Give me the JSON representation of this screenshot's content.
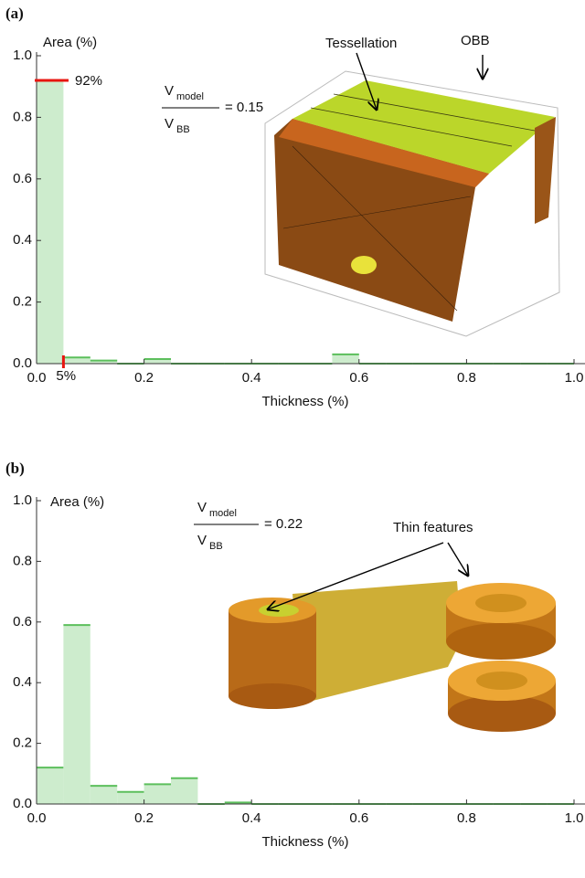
{
  "chart_data": [
    {
      "type": "histogram",
      "panel": "(a)",
      "y_label": "Area (%)",
      "x_label": "Thickness (%)",
      "bins": [
        0,
        0.05,
        0.1,
        0.15,
        0.2,
        0.25,
        0.3,
        0.35,
        0.4,
        0.45,
        0.5,
        0.55,
        0.6,
        0.65,
        0.7,
        0.75,
        0.8,
        0.85,
        0.9,
        0.95,
        1
      ],
      "counts": [
        0.92,
        0.02,
        0.01,
        0,
        0.015,
        0,
        0,
        0,
        0,
        0,
        0,
        0.03,
        0,
        0,
        0,
        0,
        0,
        0,
        0,
        0
      ],
      "color": "#cdeccd",
      "edge_color": "#5cbf5c",
      "xlim": [
        0,
        1
      ],
      "ylim": [
        0,
        1
      ],
      "xticks": [
        {
          "value": 0,
          "label": "0.0"
        },
        0.2,
        0.4,
        0.6,
        0.8,
        {
          "value": 1,
          "label": "1.0"
        }
      ],
      "yticks": [
        {
          "value": 0,
          "label": "0.0"
        },
        0.2,
        0.4,
        0.6,
        0.8,
        {
          "value": 1,
          "label": "1.0"
        }
      ],
      "annotations": [
        {
          "label": "92%",
          "y": 0.92,
          "color": "#e8150f"
        },
        {
          "label": "5%",
          "x": 0.05,
          "color": "#e8150f"
        }
      ],
      "formula": {
        "numerator": "V",
        "numerator_sub": "model",
        "denominator": "V",
        "denominator_sub": "BB",
        "result": "= 0.15"
      },
      "callouts": [
        "Tessellation",
        "OBB"
      ]
    },
    {
      "type": "histogram",
      "panel": "(b)",
      "y_label": "Area (%)",
      "x_label": "Thickness (%)",
      "bins": [
        0,
        0.05,
        0.1,
        0.15,
        0.2,
        0.25,
        0.3,
        0.35,
        0.4,
        0.45,
        0.5,
        0.55,
        0.6,
        0.65,
        0.7,
        0.75,
        0.8,
        0.85,
        0.9,
        0.95,
        1
      ],
      "counts": [
        0.12,
        0.59,
        0.06,
        0.04,
        0.065,
        0.085,
        0,
        0.005,
        0,
        0,
        0,
        0,
        0,
        0,
        0,
        0,
        0,
        0,
        0,
        0
      ],
      "color": "#cdeccd",
      "edge_color": "#5cbf5c",
      "xlim": [
        0,
        1
      ],
      "ylim": [
        0,
        1
      ],
      "xticks": [
        {
          "value": 0,
          "label": "0.0"
        },
        0.2,
        0.4,
        0.6,
        0.8,
        {
          "value": 1,
          "label": "1.0"
        }
      ],
      "yticks": [
        {
          "value": 0,
          "label": "0.0"
        },
        0.2,
        0.4,
        0.6,
        0.8,
        {
          "value": 1,
          "label": "1.0"
        }
      ],
      "formula": {
        "numerator": "V",
        "numerator_sub": "model",
        "denominator": "V",
        "denominator_sub": "BB",
        "result": "= 0.22"
      },
      "callouts": [
        "Thin features"
      ]
    }
  ]
}
